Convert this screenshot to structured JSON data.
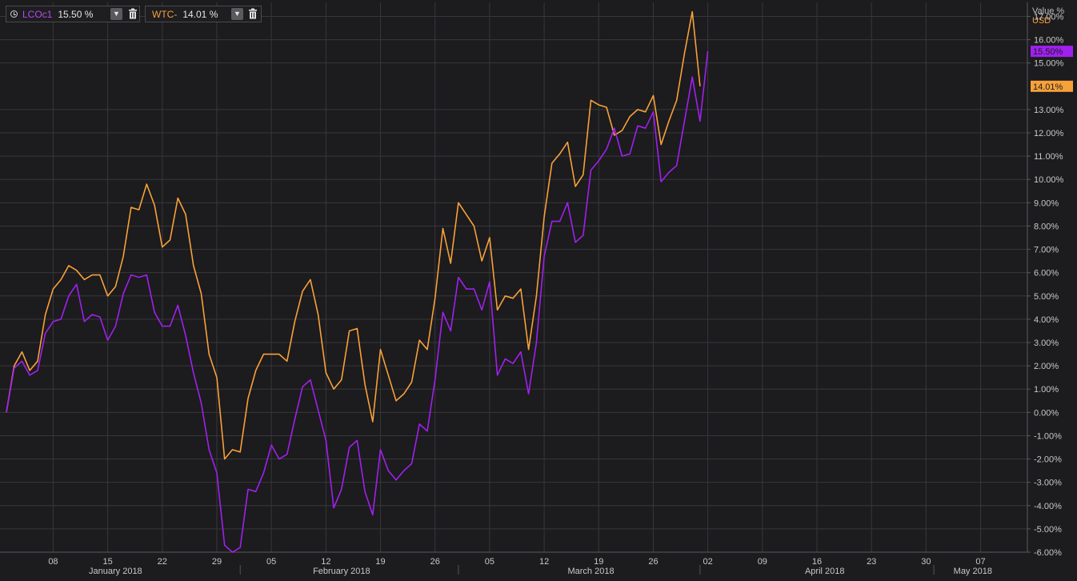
{
  "legend": [
    {
      "name": "LCOc1",
      "value": "15.50 %",
      "color": "#a020f0"
    },
    {
      "name": "WTC-",
      "value": "14.01 %",
      "color": "#f7a13a"
    }
  ],
  "colors": {
    "background": "#1c1b1d",
    "grid": "#38373b",
    "axis_text": "#c8c8c8",
    "lcoc1": "#a020f0",
    "wtc": "#f7a13a"
  },
  "chart_data": {
    "type": "line",
    "axis_header": {
      "line1": "Value %",
      "line2": "USD"
    },
    "ylim": [
      -6,
      17.6
    ],
    "y_ticks": [
      17,
      16,
      15,
      13,
      12,
      11,
      10,
      9,
      8,
      7,
      6,
      5,
      4,
      3,
      2,
      1,
      0,
      -1,
      -2,
      -3,
      -4,
      -5,
      -6
    ],
    "y_tick_labels": [
      "17.00%",
      "16.00%",
      "15.00%",
      "13.00%",
      "12.00%",
      "11.00%",
      "10.00%",
      "9.00%",
      "8.00%",
      "7.00%",
      "6.00%",
      "5.00%",
      "4.00%",
      "3.00%",
      "2.00%",
      "1.00%",
      "0.00%",
      "-1.00%",
      "-2.00%",
      "-3.00%",
      "-4.00%",
      "-5.00%",
      "-6.00%"
    ],
    "xlim": [
      "2018-01-02",
      "2018-05-13"
    ],
    "x_ticks": [
      {
        "date": "2018-01-08",
        "label": "08"
      },
      {
        "date": "2018-01-15",
        "label": "15"
      },
      {
        "date": "2018-01-22",
        "label": "22"
      },
      {
        "date": "2018-01-29",
        "label": "29"
      },
      {
        "date": "2018-02-05",
        "label": "05"
      },
      {
        "date": "2018-02-12",
        "label": "12"
      },
      {
        "date": "2018-02-19",
        "label": "19"
      },
      {
        "date": "2018-02-26",
        "label": "26"
      },
      {
        "date": "2018-03-05",
        "label": "05"
      },
      {
        "date": "2018-03-12",
        "label": "12"
      },
      {
        "date": "2018-03-19",
        "label": "19"
      },
      {
        "date": "2018-03-26",
        "label": "26"
      },
      {
        "date": "2018-04-02",
        "label": "02"
      },
      {
        "date": "2018-04-09",
        "label": "09"
      },
      {
        "date": "2018-04-16",
        "label": "16"
      },
      {
        "date": "2018-04-23",
        "label": "23"
      },
      {
        "date": "2018-04-30",
        "label": "30"
      },
      {
        "date": "2018-05-07",
        "label": "07"
      }
    ],
    "months": [
      {
        "label": "January 2018",
        "center": "2018-01-16"
      },
      {
        "label": "February 2018",
        "center": "2018-02-14"
      },
      {
        "label": "March 2018",
        "center": "2018-03-18"
      },
      {
        "label": "April 2018",
        "center": "2018-04-17"
      },
      {
        "label": "May 2018",
        "center": "2018-05-06"
      }
    ],
    "month_boundaries": [
      "2018-02-01",
      "2018-03-01",
      "2018-04-01",
      "2018-05-01"
    ],
    "grid": true,
    "series": [
      {
        "name": "LCOc1",
        "last_label": "15.50%",
        "points": [
          [
            "2018-01-02",
            0.0
          ],
          [
            "2018-01-03",
            1.9
          ],
          [
            "2018-01-04",
            2.2
          ],
          [
            "2018-01-05",
            1.6
          ],
          [
            "2018-01-06",
            1.8
          ],
          [
            "2018-01-07",
            3.4
          ],
          [
            "2018-01-08",
            3.9
          ],
          [
            "2018-01-09",
            4.0
          ],
          [
            "2018-01-10",
            5.0
          ],
          [
            "2018-01-11",
            5.5
          ],
          [
            "2018-01-12",
            3.9
          ],
          [
            "2018-01-13",
            4.2
          ],
          [
            "2018-01-14",
            4.1
          ],
          [
            "2018-01-15",
            3.1
          ],
          [
            "2018-01-16",
            3.7
          ],
          [
            "2018-01-17",
            5.1
          ],
          [
            "2018-01-18",
            5.9
          ],
          [
            "2018-01-19",
            5.8
          ],
          [
            "2018-01-20",
            5.9
          ],
          [
            "2018-01-21",
            4.3
          ],
          [
            "2018-01-22",
            3.7
          ],
          [
            "2018-01-23",
            3.7
          ],
          [
            "2018-01-24",
            4.6
          ],
          [
            "2018-01-25",
            3.3
          ],
          [
            "2018-01-26",
            1.7
          ],
          [
            "2018-01-27",
            0.4
          ],
          [
            "2018-01-28",
            -1.6
          ],
          [
            "2018-01-29",
            -2.6
          ],
          [
            "2018-01-30",
            -5.7
          ],
          [
            "2018-01-31",
            -6.0
          ],
          [
            "2018-02-01",
            -5.8
          ],
          [
            "2018-02-02",
            -3.3
          ],
          [
            "2018-02-03",
            -3.4
          ],
          [
            "2018-02-04",
            -2.6
          ],
          [
            "2018-02-05",
            -1.4
          ],
          [
            "2018-02-06",
            -2.0
          ],
          [
            "2018-02-07",
            -1.8
          ],
          [
            "2018-02-08",
            -0.3
          ],
          [
            "2018-02-09",
            1.1
          ],
          [
            "2018-02-10",
            1.4
          ],
          [
            "2018-02-11",
            0.1
          ],
          [
            "2018-02-12",
            -1.2
          ],
          [
            "2018-02-13",
            -4.1
          ],
          [
            "2018-02-14",
            -3.3
          ],
          [
            "2018-02-15",
            -1.5
          ],
          [
            "2018-02-16",
            -1.2
          ],
          [
            "2018-02-17",
            -3.4
          ],
          [
            "2018-02-18",
            -4.4
          ],
          [
            "2018-02-19",
            -1.6
          ],
          [
            "2018-02-20",
            -2.5
          ],
          [
            "2018-02-21",
            -2.9
          ],
          [
            "2018-02-22",
            -2.5
          ],
          [
            "2018-02-23",
            -2.2
          ],
          [
            "2018-02-24",
            -0.5
          ],
          [
            "2018-02-25",
            -0.8
          ],
          [
            "2018-02-26",
            1.4
          ],
          [
            "2018-02-27",
            4.3
          ],
          [
            "2018-02-28",
            3.5
          ],
          [
            "2018-03-01",
            5.8
          ],
          [
            "2018-03-02",
            5.3
          ],
          [
            "2018-03-03",
            5.3
          ],
          [
            "2018-03-04",
            4.4
          ],
          [
            "2018-03-05",
            5.6
          ],
          [
            "2018-03-06",
            1.6
          ],
          [
            "2018-03-07",
            2.3
          ],
          [
            "2018-03-08",
            2.1
          ],
          [
            "2018-03-09",
            2.6
          ],
          [
            "2018-03-10",
            0.8
          ],
          [
            "2018-03-11",
            3.0
          ],
          [
            "2018-03-12",
            6.7
          ],
          [
            "2018-03-13",
            8.2
          ],
          [
            "2018-03-14",
            8.2
          ],
          [
            "2018-03-15",
            9.0
          ],
          [
            "2018-03-16",
            7.3
          ],
          [
            "2018-03-17",
            7.6
          ],
          [
            "2018-03-18",
            10.4
          ],
          [
            "2018-03-19",
            10.8
          ],
          [
            "2018-03-20",
            11.3
          ],
          [
            "2018-03-21",
            12.2
          ],
          [
            "2018-03-22",
            11.0
          ],
          [
            "2018-03-23",
            11.1
          ],
          [
            "2018-03-24",
            12.3
          ],
          [
            "2018-03-25",
            12.2
          ],
          [
            "2018-03-26",
            12.9
          ],
          [
            "2018-03-27",
            9.9
          ],
          [
            "2018-03-28",
            10.3
          ],
          [
            "2018-03-29",
            10.6
          ],
          [
            "2018-03-30",
            12.5
          ],
          [
            "2018-03-31",
            14.4
          ],
          [
            "2018-04-01",
            12.5
          ],
          [
            "2018-04-02",
            15.5
          ]
        ]
      },
      {
        "name": "WTC-",
        "last_label": "14.01%",
        "points": [
          [
            "2018-01-02",
            0.0
          ],
          [
            "2018-01-03",
            2.0
          ],
          [
            "2018-01-04",
            2.6
          ],
          [
            "2018-01-05",
            1.8
          ],
          [
            "2018-01-06",
            2.2
          ],
          [
            "2018-01-07",
            4.2
          ],
          [
            "2018-01-08",
            5.3
          ],
          [
            "2018-01-09",
            5.7
          ],
          [
            "2018-01-10",
            6.3
          ],
          [
            "2018-01-11",
            6.1
          ],
          [
            "2018-01-12",
            5.7
          ],
          [
            "2018-01-13",
            5.9
          ],
          [
            "2018-01-14",
            5.9
          ],
          [
            "2018-01-15",
            5.0
          ],
          [
            "2018-01-16",
            5.4
          ],
          [
            "2018-01-17",
            6.7
          ],
          [
            "2018-01-18",
            8.8
          ],
          [
            "2018-01-19",
            8.7
          ],
          [
            "2018-01-20",
            9.8
          ],
          [
            "2018-01-21",
            8.9
          ],
          [
            "2018-01-22",
            7.1
          ],
          [
            "2018-01-23",
            7.4
          ],
          [
            "2018-01-24",
            9.2
          ],
          [
            "2018-01-25",
            8.5
          ],
          [
            "2018-01-26",
            6.3
          ],
          [
            "2018-01-27",
            5.1
          ],
          [
            "2018-01-28",
            2.5
          ],
          [
            "2018-01-29",
            1.5
          ],
          [
            "2018-01-30",
            -2.0
          ],
          [
            "2018-01-31",
            -1.6
          ],
          [
            "2018-02-01",
            -1.7
          ],
          [
            "2018-02-02",
            0.6
          ],
          [
            "2018-02-03",
            1.8
          ],
          [
            "2018-02-04",
            2.5
          ],
          [
            "2018-02-05",
            2.5
          ],
          [
            "2018-02-06",
            2.5
          ],
          [
            "2018-02-07",
            2.2
          ],
          [
            "2018-02-08",
            3.9
          ],
          [
            "2018-02-09",
            5.2
          ],
          [
            "2018-02-10",
            5.7
          ],
          [
            "2018-02-11",
            4.2
          ],
          [
            "2018-02-12",
            1.7
          ],
          [
            "2018-02-13",
            1.0
          ],
          [
            "2018-02-14",
            1.4
          ],
          [
            "2018-02-15",
            3.5
          ],
          [
            "2018-02-16",
            3.6
          ],
          [
            "2018-02-17",
            1.2
          ],
          [
            "2018-02-18",
            -0.4
          ],
          [
            "2018-02-19",
            2.7
          ],
          [
            "2018-02-20",
            1.6
          ],
          [
            "2018-02-21",
            0.5
          ],
          [
            "2018-02-22",
            0.8
          ],
          [
            "2018-02-23",
            1.3
          ],
          [
            "2018-02-24",
            3.1
          ],
          [
            "2018-02-25",
            2.7
          ],
          [
            "2018-02-26",
            4.9
          ],
          [
            "2018-02-27",
            7.9
          ],
          [
            "2018-02-28",
            6.4
          ],
          [
            "2018-03-01",
            9.0
          ],
          [
            "2018-03-02",
            8.5
          ],
          [
            "2018-03-03",
            8.0
          ],
          [
            "2018-03-04",
            6.5
          ],
          [
            "2018-03-05",
            7.5
          ],
          [
            "2018-03-06",
            4.4
          ],
          [
            "2018-03-07",
            5.0
          ],
          [
            "2018-03-08",
            4.9
          ],
          [
            "2018-03-09",
            5.3
          ],
          [
            "2018-03-10",
            2.7
          ],
          [
            "2018-03-11",
            5.0
          ],
          [
            "2018-03-12",
            8.4
          ],
          [
            "2018-03-13",
            10.7
          ],
          [
            "2018-03-14",
            11.1
          ],
          [
            "2018-03-15",
            11.6
          ],
          [
            "2018-03-16",
            9.7
          ],
          [
            "2018-03-17",
            10.2
          ],
          [
            "2018-03-18",
            13.4
          ],
          [
            "2018-03-19",
            13.2
          ],
          [
            "2018-03-20",
            13.1
          ],
          [
            "2018-03-21",
            11.9
          ],
          [
            "2018-03-22",
            12.1
          ],
          [
            "2018-03-23",
            12.7
          ],
          [
            "2018-03-24",
            13.0
          ],
          [
            "2018-03-25",
            12.9
          ],
          [
            "2018-03-26",
            13.6
          ],
          [
            "2018-03-27",
            11.5
          ],
          [
            "2018-03-28",
            12.5
          ],
          [
            "2018-03-29",
            13.4
          ],
          [
            "2018-03-30",
            15.4
          ],
          [
            "2018-03-31",
            17.2
          ],
          [
            "2018-04-01",
            14.0
          ]
        ]
      }
    ]
  }
}
